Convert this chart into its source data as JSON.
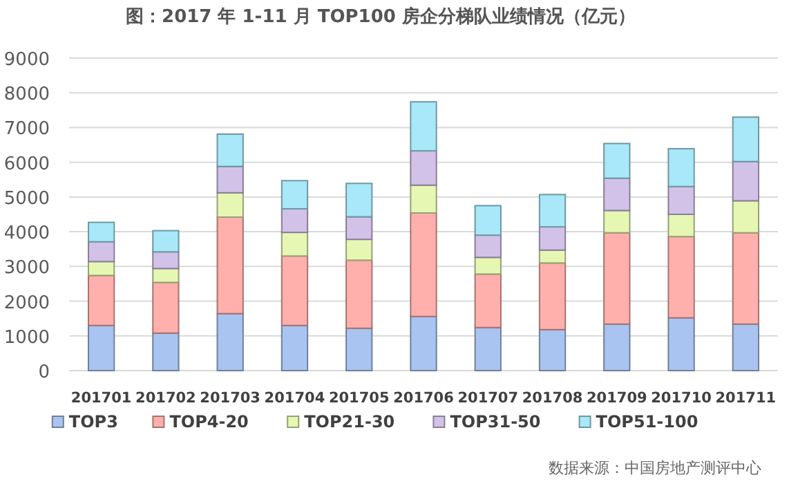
{
  "chart_data": {
    "type": "bar",
    "title": "图：2017 年 1-11 月 TOP100 房企分梯队业绩情况（亿元）",
    "categories": [
      "201701",
      "201702",
      "201703",
      "201704",
      "201705",
      "201706",
      "201707",
      "201708",
      "201709",
      "201710",
      "201711"
    ],
    "stacked": true,
    "ylim": [
      0,
      9000
    ],
    "yticks": [
      0,
      1000,
      2000,
      3000,
      4000,
      5000,
      6000,
      7000,
      8000,
      9000
    ],
    "grid": "y",
    "legend": "bottom",
    "series": [
      {
        "name": "TOP3",
        "color": "#a9c4f0",
        "values": [
          1300,
          1080,
          1640,
          1300,
          1220,
          1560,
          1240,
          1180,
          1340,
          1520,
          1340
        ]
      },
      {
        "name": "TOP4-20",
        "color": "#ffb0ac",
        "values": [
          1440,
          1460,
          2780,
          2000,
          1960,
          2980,
          1540,
          1920,
          2630,
          2340,
          2630
        ]
      },
      {
        "name": "TOP21-30",
        "color": "#e6f7b4",
        "values": [
          400,
          400,
          700,
          680,
          600,
          800,
          480,
          370,
          640,
          640,
          920
        ]
      },
      {
        "name": "TOP31-50",
        "color": "#d2c2e8",
        "values": [
          570,
          480,
          760,
          680,
          650,
          990,
          640,
          670,
          930,
          800,
          1130
        ]
      },
      {
        "name": "TOP51-100",
        "color": "#a8e8f8",
        "values": [
          560,
          610,
          930,
          810,
          960,
          1410,
          850,
          930,
          1000,
          1090,
          1280
        ]
      }
    ],
    "annotations": [
      "数据来源：中国房地产测评中心"
    ]
  }
}
